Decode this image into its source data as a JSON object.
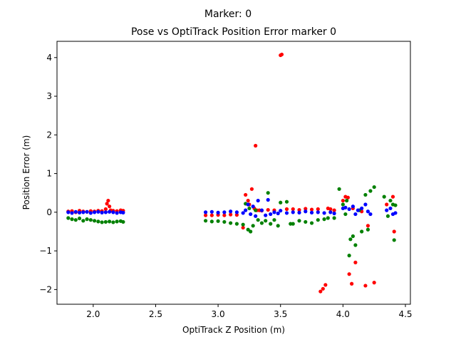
{
  "chart_data": {
    "type": "scatter",
    "suptitle": "Marker: 0",
    "title": "Pose vs OptiTrack Position Error marker 0",
    "xlabel": "OptiTrack Z Position (m)",
    "ylabel": "Position Error (m)",
    "xlim": [
      1.71,
      4.54
    ],
    "ylim": [
      -2.38,
      4.42
    ],
    "xticks": [
      2.0,
      2.5,
      3.0,
      3.5,
      4.0,
      4.5
    ],
    "xtick_labels": [
      "2.0",
      "2.5",
      "3.0",
      "3.5",
      "4.0",
      "4.5"
    ],
    "yticks": [
      -2,
      -1,
      0,
      1,
      2,
      3,
      4
    ],
    "ytick_labels": [
      "−2",
      "−1",
      "0",
      "1",
      "2",
      "3",
      "4"
    ],
    "grid": false,
    "legend": null,
    "series": [
      {
        "color": "#ff0000",
        "x": [
          1.8,
          1.83,
          1.86,
          1.89,
          1.92,
          1.95,
          1.98,
          2.01,
          2.04,
          2.07,
          2.1,
          2.11,
          2.12,
          2.13,
          2.14,
          2.16,
          2.19,
          2.22,
          2.24,
          2.9,
          2.95,
          3.0,
          3.05,
          3.1,
          3.15,
          3.2,
          3.22,
          3.24,
          3.25,
          3.27,
          3.29,
          3.3,
          3.31,
          3.33,
          3.35,
          3.4,
          3.45,
          3.5,
          3.51,
          3.55,
          3.6,
          3.65,
          3.7,
          3.75,
          3.8,
          3.82,
          3.84,
          3.86,
          3.88,
          3.9,
          3.93,
          4.0,
          4.02,
          4.04,
          4.05,
          4.07,
          4.08,
          4.1,
          4.15,
          4.18,
          4.2,
          4.25,
          4.35,
          4.4,
          4.41
        ],
        "y": [
          0.02,
          0.03,
          0.0,
          0.04,
          0.02,
          0.01,
          0.03,
          0.02,
          0.04,
          0.03,
          0.08,
          0.22,
          0.3,
          0.15,
          0.05,
          0.04,
          0.03,
          0.05,
          0.04,
          -0.08,
          -0.08,
          -0.07,
          -0.08,
          -0.06,
          -0.07,
          -0.4,
          0.45,
          0.3,
          0.2,
          0.6,
          0.1,
          1.72,
          0.05,
          0.05,
          0.04,
          0.06,
          0.05,
          4.06,
          4.08,
          0.08,
          0.08,
          0.06,
          0.09,
          0.07,
          0.08,
          -2.05,
          -1.98,
          -1.88,
          0.1,
          0.08,
          0.05,
          0.3,
          0.4,
          0.38,
          -1.6,
          -1.85,
          0.1,
          -1.3,
          0.02,
          -1.9,
          -0.35,
          -1.82,
          0.2,
          0.4,
          -0.5
        ],
        "marker": "o"
      },
      {
        "color": "#008000",
        "x": [
          1.8,
          1.83,
          1.86,
          1.89,
          1.92,
          1.95,
          1.98,
          2.01,
          2.04,
          2.07,
          2.1,
          2.13,
          2.16,
          2.19,
          2.22,
          2.24,
          2.9,
          2.95,
          3.0,
          3.05,
          3.1,
          3.15,
          3.2,
          3.22,
          3.24,
          3.25,
          3.26,
          3.28,
          3.3,
          3.32,
          3.35,
          3.38,
          3.4,
          3.42,
          3.45,
          3.48,
          3.5,
          3.55,
          3.58,
          3.6,
          3.65,
          3.7,
          3.75,
          3.8,
          3.85,
          3.88,
          3.93,
          3.97,
          4.0,
          4.02,
          4.03,
          4.05,
          4.06,
          4.08,
          4.1,
          4.13,
          4.15,
          4.18,
          4.2,
          4.22,
          4.25,
          4.33,
          4.36,
          4.38,
          4.4,
          4.41,
          4.42
        ],
        "y": [
          -0.15,
          -0.18,
          -0.2,
          -0.16,
          -0.22,
          -0.18,
          -0.2,
          -0.22,
          -0.24,
          -0.26,
          -0.25,
          -0.24,
          -0.26,
          -0.24,
          -0.23,
          -0.25,
          -0.22,
          -0.24,
          -0.23,
          -0.25,
          -0.28,
          -0.3,
          -0.32,
          0.22,
          -0.45,
          0.1,
          -0.5,
          -0.35,
          0.05,
          -0.2,
          -0.28,
          -0.22,
          0.5,
          -0.3,
          -0.2,
          -0.35,
          0.25,
          0.27,
          -0.3,
          -0.3,
          -0.22,
          -0.25,
          -0.28,
          -0.2,
          -0.18,
          -0.15,
          -0.15,
          0.6,
          0.2,
          -0.05,
          0.3,
          -1.12,
          -0.7,
          -0.62,
          -0.85,
          0.05,
          -0.5,
          0.45,
          -0.45,
          0.55,
          0.65,
          0.4,
          -0.1,
          0.3,
          0.2,
          -0.72,
          0.18
        ],
        "marker": "o"
      },
      {
        "color": "#0000ff",
        "x": [
          1.8,
          1.83,
          1.86,
          1.89,
          1.92,
          1.95,
          1.98,
          2.01,
          2.04,
          2.07,
          2.1,
          2.13,
          2.16,
          2.19,
          2.22,
          2.24,
          2.9,
          2.95,
          3.0,
          3.05,
          3.1,
          3.15,
          3.2,
          3.22,
          3.24,
          3.26,
          3.28,
          3.3,
          3.32,
          3.35,
          3.38,
          3.4,
          3.42,
          3.45,
          3.48,
          3.5,
          3.55,
          3.6,
          3.65,
          3.7,
          3.75,
          3.8,
          3.85,
          3.9,
          3.93,
          4.0,
          4.02,
          4.05,
          4.08,
          4.1,
          4.12,
          4.15,
          4.18,
          4.2,
          4.22,
          4.35,
          4.38,
          4.4,
          4.42
        ],
        "y": [
          0.0,
          -0.02,
          0.01,
          -0.01,
          0.0,
          0.01,
          -0.02,
          0.0,
          0.01,
          -0.01,
          0.0,
          0.01,
          0.0,
          -0.02,
          0.0,
          -0.01,
          0.0,
          0.01,
          -0.01,
          0.0,
          0.02,
          0.0,
          -0.02,
          0.05,
          0.2,
          -0.05,
          0.15,
          -0.1,
          0.3,
          0.05,
          -0.08,
          0.32,
          -0.05,
          0.0,
          -0.03,
          0.04,
          -0.02,
          0.0,
          -0.01,
          0.02,
          -0.01,
          0.0,
          -0.02,
          0.0,
          -0.03,
          0.1,
          0.12,
          0.08,
          0.15,
          -0.05,
          0.05,
          0.1,
          0.2,
          0.02,
          -0.05,
          0.05,
          0.1,
          -0.05,
          -0.02
        ],
        "marker": "o"
      }
    ]
  }
}
